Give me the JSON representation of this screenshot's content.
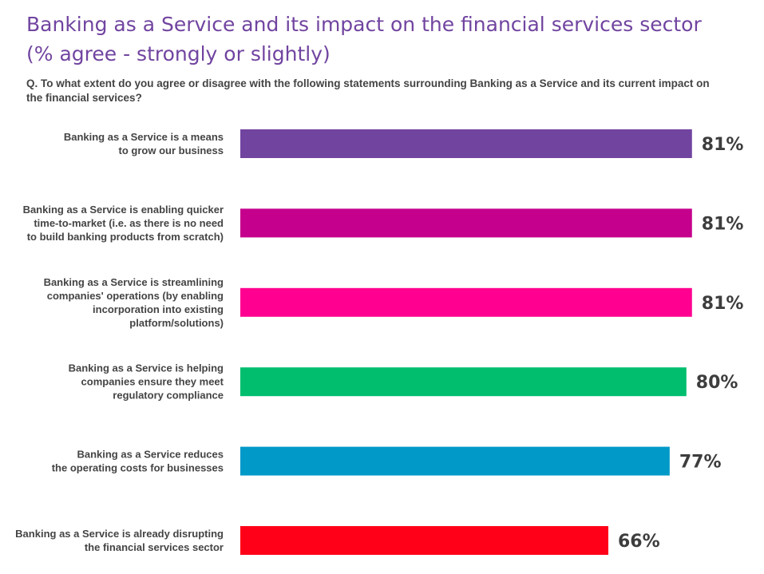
{
  "title_lines": [
    "Banking as a Service and its impact on the financial services sector",
    "(% agree - strongly or slightly)"
  ],
  "question": "Q. To what extent do you agree or disagree with the following statements surrounding Banking as a Service and its current impact on the financial services?",
  "chart_data": {
    "type": "bar",
    "orientation": "horizontal",
    "title": "Banking as a Service and its impact on the financial services sector (% agree - strongly or slightly)",
    "unit": "%",
    "xlim": [
      0,
      100
    ],
    "grid": false,
    "legend": "none",
    "categories": [
      [
        "Banking as a Service is a means",
        "to grow our business"
      ],
      [
        "Banking as a Service is enabling quicker",
        "time-to-market (i.e. as there is no need",
        "to build banking products from scratch)"
      ],
      [
        "Banking as a Service is streamlining",
        "companies' operations (by enabling",
        "incorporation into existing",
        "platform/solutions)"
      ],
      [
        "Banking as a Service is helping",
        "companies ensure they meet",
        "regulatory compliance"
      ],
      [
        "Banking as a Service reduces",
        "the operating costs for businesses"
      ],
      [
        "Banking as a Service is already disrupting",
        "the financial services sector"
      ]
    ],
    "values": [
      81,
      81,
      81,
      80,
      77,
      66
    ],
    "value_labels": [
      "81%",
      "81%",
      "81%",
      "80%",
      "77%",
      "66%"
    ],
    "colors": [
      "#7144a0",
      "#c5008c",
      "#ff0090",
      "#00be6e",
      "#0099c8",
      "#ff0018"
    ]
  }
}
